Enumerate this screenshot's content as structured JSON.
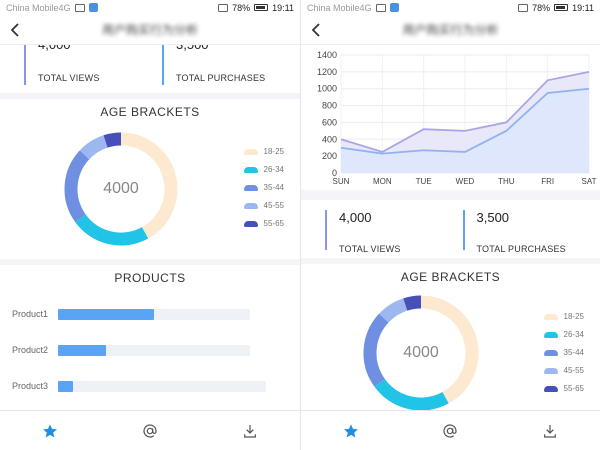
{
  "status": {
    "carrier": "China Mobile4G",
    "battery": "78%",
    "time": "19:11"
  },
  "header": {
    "title": "用户购买行为分析",
    "back_icon": "chevron-left-icon"
  },
  "stats": {
    "views": {
      "value": "4,000",
      "label": "TOTAL VIEWS",
      "color": "#8b95e8"
    },
    "purchases": {
      "value": "3,500",
      "label": "TOTAL PURCHASES",
      "color": "#5aa4f5"
    }
  },
  "age": {
    "title": "AGE BRACKETS",
    "center": "4000",
    "legend": [
      {
        "label": "18-25",
        "color": "#fde9cf"
      },
      {
        "label": "26-34",
        "color": "#21c3e6"
      },
      {
        "label": "35-44",
        "color": "#6f8fe3"
      },
      {
        "label": "45-55",
        "color": "#9db8f0"
      },
      {
        "label": "55-65",
        "color": "#4650b8"
      }
    ]
  },
  "products": {
    "title": "PRODUCTS",
    "items": [
      {
        "label": "Product1",
        "value": 0.5
      },
      {
        "label": "Product2",
        "value": 0.25
      },
      {
        "label": "Product3",
        "value": 0.08
      }
    ]
  },
  "tabs": [
    {
      "icon": "star-icon",
      "active": true
    },
    {
      "icon": "at-sign-icon",
      "active": false
    },
    {
      "icon": "download-icon",
      "active": false
    }
  ],
  "chart_data": [
    {
      "type": "pie",
      "title": "AGE BRACKETS",
      "categories": [
        "18-25",
        "26-34",
        "35-44",
        "45-55",
        "55-65"
      ],
      "values": [
        42,
        23,
        22,
        8,
        5
      ],
      "center_label": "4000"
    },
    {
      "type": "bar",
      "title": "PRODUCTS",
      "orientation": "horizontal",
      "categories": [
        "Product1",
        "Product2",
        "Product3"
      ],
      "values": [
        0.5,
        0.25,
        0.08
      ]
    },
    {
      "type": "area",
      "categories": [
        "SUN",
        "MON",
        "TUE",
        "WED",
        "THU",
        "FRI",
        "SAT"
      ],
      "yticks": [
        "0",
        "200",
        "400",
        "600",
        "800",
        "1000",
        "1200",
        "1400"
      ],
      "ylim": [
        0,
        1400
      ],
      "grid": true,
      "series": [
        {
          "values": [
            400,
            250,
            520,
            500,
            600,
            1100,
            1200
          ],
          "color": "#a8a6e6"
        },
        {
          "values": [
            300,
            230,
            270,
            250,
            500,
            950,
            1000
          ],
          "color": "#8fb3f2"
        }
      ]
    }
  ]
}
